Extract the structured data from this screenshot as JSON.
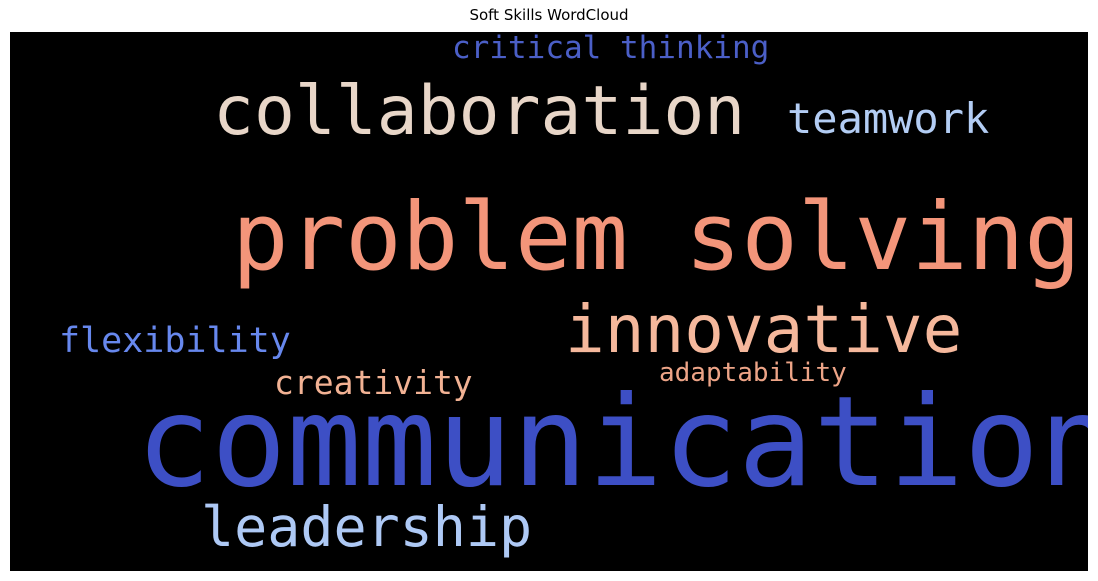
{
  "title": "Soft Skills WordCloud",
  "words": [
    {
      "text": "critical thinking",
      "color": "#4b5fc7"
    },
    {
      "text": "collaboration",
      "color": "#e8d6c8"
    },
    {
      "text": "teamwork",
      "color": "#b3cdf4"
    },
    {
      "text": "problem solving",
      "color": "#f3957a"
    },
    {
      "text": "innovative",
      "color": "#f5b89c"
    },
    {
      "text": "flexibility",
      "color": "#6788ee"
    },
    {
      "text": "creativity",
      "color": "#f2b294"
    },
    {
      "text": "adaptability",
      "color": "#eda487"
    },
    {
      "text": "communication",
      "color": "#3d4fc5"
    },
    {
      "text": "leadership",
      "color": "#aec9f5"
    }
  ],
  "background_color": "#000000"
}
